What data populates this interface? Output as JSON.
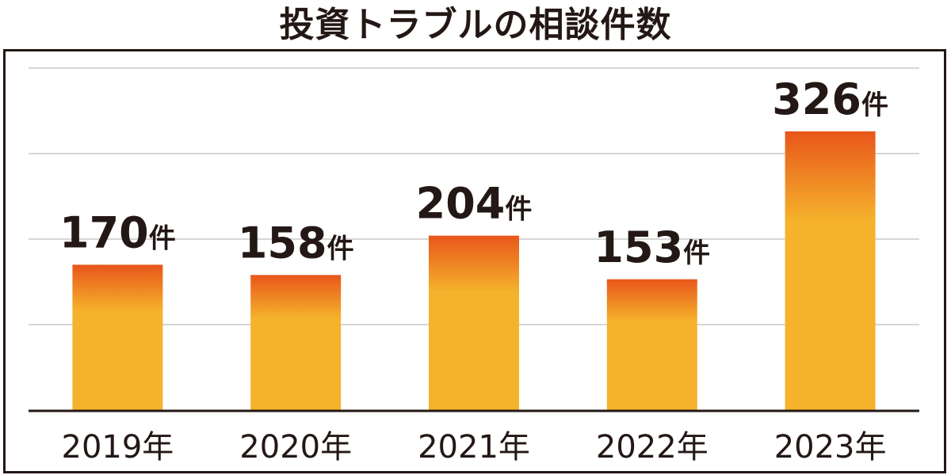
{
  "chart_data": {
    "type": "bar",
    "title": "投資トラブルの相談件数",
    "categories": [
      "2019年",
      "2020年",
      "2021年",
      "2022年",
      "2023年"
    ],
    "values": [
      170,
      158,
      204,
      153,
      326
    ],
    "value_unit": "件",
    "ylim": [
      0,
      400
    ],
    "grid": true,
    "bar_colors": {
      "top": "#e8561a",
      "bottom": "#f5b22c"
    },
    "grid_color": "#c9c9c9",
    "axis_color": "#231815"
  }
}
